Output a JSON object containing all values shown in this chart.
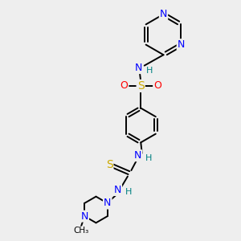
{
  "background_color": "#eeeeee",
  "atom_colors": {
    "N": "#0000ff",
    "S": "#ccaa00",
    "O": "#ff0000",
    "H": "#008080",
    "C": "#000000"
  },
  "bond_color": "#000000",
  "figsize": [
    3.0,
    3.0
  ],
  "dpi": 100
}
